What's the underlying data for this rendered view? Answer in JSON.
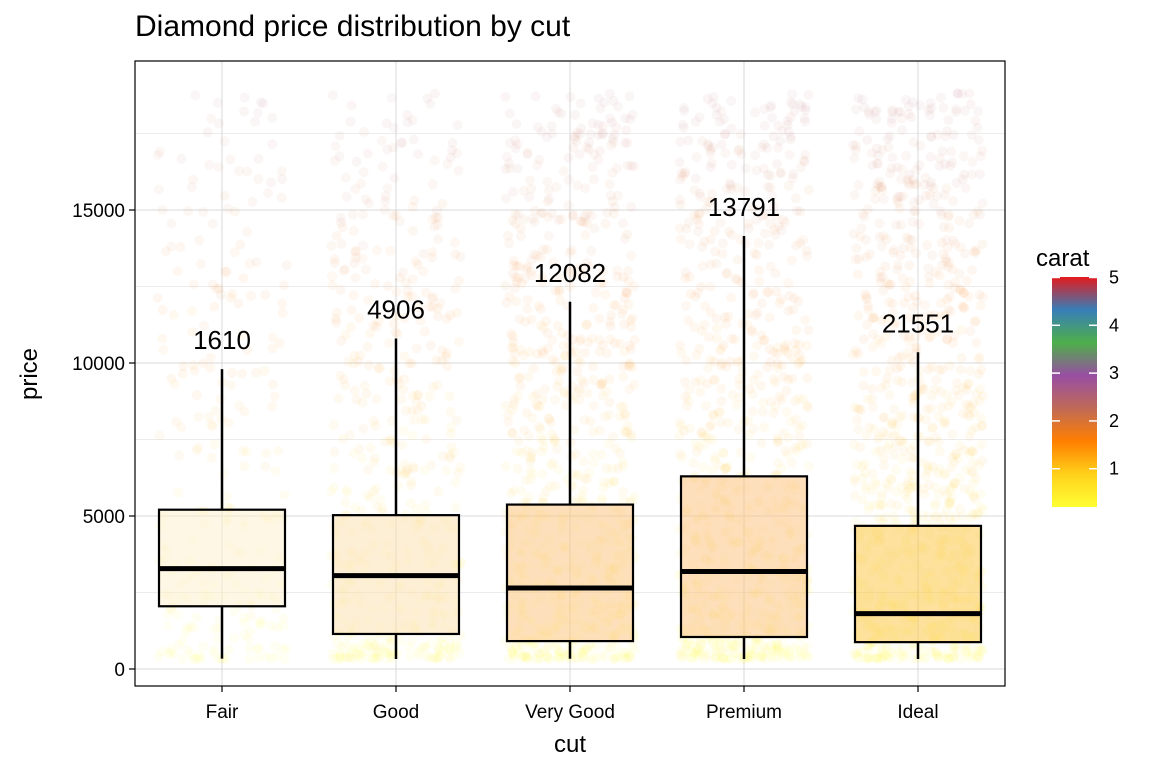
{
  "chart_data": {
    "type": "box",
    "title": "Diamond price distribution by cut",
    "xlabel": "cut",
    "ylabel": "price",
    "categories": [
      "Fair",
      "Good",
      "Very Good",
      "Premium",
      "Ideal"
    ],
    "y_ticks": [
      0,
      5000,
      10000,
      15000
    ],
    "y_tick_labels": [
      "0",
      "5000",
      "10000",
      "15000"
    ],
    "ylim": [
      -500,
      19500
    ],
    "grid": true,
    "boxes": [
      {
        "category": "Fair",
        "whisker_low": 337,
        "q1": 2050,
        "median": 3282,
        "q3": 5206,
        "whisker_high": 9800,
        "count_label": "1610"
      },
      {
        "category": "Good",
        "whisker_low": 327,
        "q1": 1145,
        "median": 3050,
        "q3": 5028,
        "whisker_high": 10800,
        "count_label": "4906"
      },
      {
        "category": "Very Good",
        "whisker_low": 336,
        "q1": 912,
        "median": 2648,
        "q3": 5373,
        "whisker_high": 12000,
        "count_label": "12082"
      },
      {
        "category": "Premium",
        "whisker_low": 326,
        "q1": 1046,
        "median": 3185,
        "q3": 6296,
        "whisker_high": 14150,
        "count_label": "13791"
      },
      {
        "category": "Ideal",
        "whisker_low": 326,
        "q1": 878,
        "median": 1810,
        "q3": 4678,
        "whisker_high": 10350,
        "count_label": "21551"
      }
    ],
    "points": {
      "color_variable": "carat",
      "y_range": [
        326,
        18823
      ],
      "alpha": "low",
      "shown": "jittered per-diamond points colored by carat"
    },
    "legend": {
      "title": "carat",
      "placement": "right",
      "type": "colorbar",
      "range": [
        0.2,
        5.01
      ],
      "ticks": [
        1,
        2,
        3,
        4,
        5
      ],
      "tick_labels": [
        "1",
        "2",
        "3",
        "4",
        "5"
      ],
      "colors": [
        "#ffff33",
        "#ffd11a",
        "#ff7f00",
        "#c06a57",
        "#984ea3",
        "#4daf4a",
        "#377eb8",
        "#e41a1c"
      ]
    },
    "box_fill_colors": [
      "#fdf1d0",
      "#fbe2b5",
      "#fbc784",
      "#fbc485",
      "#fbc94d"
    ]
  }
}
